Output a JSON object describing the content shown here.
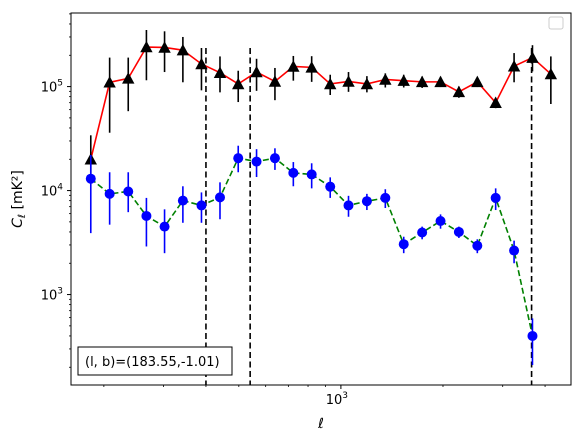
{
  "chart_data": {
    "type": "scatter",
    "title": "",
    "xlabel": "ℓ",
    "ylabel": "C_ℓ [mK²]",
    "xscale": "log",
    "yscale": "log",
    "xlim": [
      160,
      4770
    ],
    "ylim": [
      135,
      510000
    ],
    "x_tick_labels": [
      {
        "value": 1000,
        "label": "10^3"
      }
    ],
    "y_tick_labels": [
      {
        "value": 1000,
        "label": "10^3"
      },
      {
        "value": 10000,
        "label": "10^4"
      },
      {
        "value": 100000,
        "label": "10^5"
      }
    ],
    "grid": false,
    "legend": "top-right (empty)",
    "annotation": "(l, b)=(183.55,-1.01)",
    "vertical_lines_x": [
      400,
      540,
      3650
    ],
    "series": [
      {
        "color": "#ff0000",
        "marker": "triangle",
        "marker_color": "#000000",
        "linestyle": "solid",
        "points": [
          {
            "x": 183,
            "y": 20000,
            "err_low": 14000,
            "err_high": 34000
          },
          {
            "x": 208,
            "y": 110000,
            "err_low": 36000,
            "err_high": 190000
          },
          {
            "x": 236,
            "y": 120000,
            "err_low": 58000,
            "err_high": 190000
          },
          {
            "x": 267,
            "y": 240000,
            "err_low": 115000,
            "err_high": 350000
          },
          {
            "x": 302,
            "y": 238000,
            "err_low": 138000,
            "err_high": 340000
          },
          {
            "x": 342,
            "y": 224000,
            "err_low": 110000,
            "err_high": 300000
          },
          {
            "x": 388,
            "y": 165000,
            "err_low": 92000,
            "err_high": 235000
          },
          {
            "x": 440,
            "y": 136000,
            "err_low": 88000,
            "err_high": 195000
          },
          {
            "x": 498,
            "y": 106000,
            "err_low": 71000,
            "err_high": 142000
          },
          {
            "x": 564,
            "y": 138000,
            "err_low": 91000,
            "err_high": 185000
          },
          {
            "x": 639,
            "y": 112000,
            "err_low": 74000,
            "err_high": 151000
          },
          {
            "x": 724,
            "y": 156000,
            "err_low": 114000,
            "err_high": 197000
          },
          {
            "x": 820,
            "y": 153000,
            "err_low": 111000,
            "err_high": 196000
          },
          {
            "x": 930,
            "y": 106000,
            "err_low": 83000,
            "err_high": 130000
          },
          {
            "x": 1053,
            "y": 112000,
            "err_low": 89000,
            "err_high": 138000
          },
          {
            "x": 1193,
            "y": 106000,
            "err_low": 88000,
            "err_high": 126000
          },
          {
            "x": 1352,
            "y": 117000,
            "err_low": 98000,
            "err_high": 134000
          },
          {
            "x": 1532,
            "y": 114000,
            "err_low": 98000,
            "err_high": 130000
          },
          {
            "x": 1736,
            "y": 111000,
            "err_low": 97000,
            "err_high": 125000
          },
          {
            "x": 1967,
            "y": 111000,
            "err_low": 99000,
            "err_high": 124000
          },
          {
            "x": 2228,
            "y": 89000,
            "err_low": 78000,
            "err_high": 100000
          },
          {
            "x": 2525,
            "y": 111000,
            "err_low": 99000,
            "err_high": 122000
          },
          {
            "x": 2860,
            "y": 70000,
            "err_low": 62000,
            "err_high": 78000
          },
          {
            "x": 3241,
            "y": 157000,
            "err_low": 110000,
            "err_high": 210000
          },
          {
            "x": 3672,
            "y": 190000,
            "err_low": 140000,
            "err_high": 250000
          },
          {
            "x": 4160,
            "y": 132000,
            "err_low": 68000,
            "err_high": 195000
          }
        ]
      },
      {
        "color": "#008000",
        "marker": "circle",
        "marker_color": "#0000ff",
        "linestyle": "dashed",
        "points": [
          {
            "x": 183,
            "y": 13000,
            "err_low": 3900,
            "err_high": 22000
          },
          {
            "x": 208,
            "y": 9300,
            "err_low": 4700,
            "err_high": 15000
          },
          {
            "x": 236,
            "y": 9800,
            "err_low": 6200,
            "err_high": 15000
          },
          {
            "x": 267,
            "y": 5700,
            "err_low": 2900,
            "err_high": 8500
          },
          {
            "x": 302,
            "y": 4500,
            "err_low": 2500,
            "err_high": 6600
          },
          {
            "x": 342,
            "y": 8000,
            "err_low": 4900,
            "err_high": 11000
          },
          {
            "x": 388,
            "y": 7200,
            "err_low": 4900,
            "err_high": 9600
          },
          {
            "x": 440,
            "y": 8600,
            "err_low": 5300,
            "err_high": 12000
          },
          {
            "x": 498,
            "y": 20500,
            "err_low": 15000,
            "err_high": 27000
          },
          {
            "x": 564,
            "y": 19000,
            "err_low": 13500,
            "err_high": 25000
          },
          {
            "x": 639,
            "y": 20500,
            "err_low": 15800,
            "err_high": 25500
          },
          {
            "x": 724,
            "y": 14800,
            "err_low": 11000,
            "err_high": 18800
          },
          {
            "x": 820,
            "y": 14300,
            "err_low": 10500,
            "err_high": 18300
          },
          {
            "x": 930,
            "y": 10900,
            "err_low": 8500,
            "err_high": 13400
          },
          {
            "x": 1053,
            "y": 7200,
            "err_low": 5600,
            "err_high": 8900
          },
          {
            "x": 1193,
            "y": 7900,
            "err_low": 6500,
            "err_high": 9300
          },
          {
            "x": 1352,
            "y": 8500,
            "err_low": 6800,
            "err_high": 10300
          },
          {
            "x": 1532,
            "y": 3050,
            "err_low": 2500,
            "err_high": 3600
          },
          {
            "x": 1736,
            "y": 3950,
            "err_low": 3400,
            "err_high": 4500
          },
          {
            "x": 1967,
            "y": 5100,
            "err_low": 4300,
            "err_high": 5900
          },
          {
            "x": 2228,
            "y": 4000,
            "err_low": 3500,
            "err_high": 4500
          },
          {
            "x": 2525,
            "y": 2950,
            "err_low": 2500,
            "err_high": 3400
          },
          {
            "x": 2860,
            "y": 8500,
            "err_low": 6500,
            "err_high": 10500
          },
          {
            "x": 3241,
            "y": 2650,
            "err_low": 2000,
            "err_high": 3300
          },
          {
            "x": 3672,
            "y": 400,
            "err_low": 210,
            "err_high": 590
          }
        ]
      }
    ]
  }
}
